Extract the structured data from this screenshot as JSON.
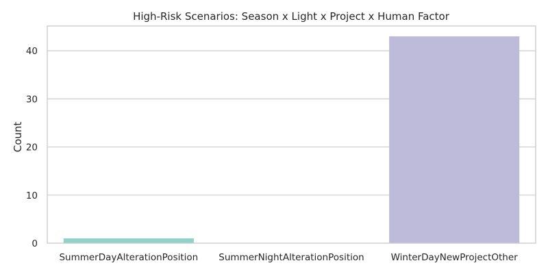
{
  "chart_data": {
    "type": "bar",
    "title": "High-Risk Scenarios: Season x Light x Project x Human Factor",
    "xlabel": "",
    "ylabel": "Count",
    "categories": [
      "SummerDayAlterationPosition",
      "SummerNightAlterationPosition",
      "WinterDayNewProjectOther"
    ],
    "values": [
      1,
      0,
      43
    ],
    "colors": [
      "#8dd3c7",
      "#ffffb3",
      "#bebada"
    ],
    "ylim": [
      0,
      45.15
    ],
    "yticks": [
      0,
      10,
      20,
      30,
      40
    ],
    "grid": true,
    "legend": "none"
  }
}
